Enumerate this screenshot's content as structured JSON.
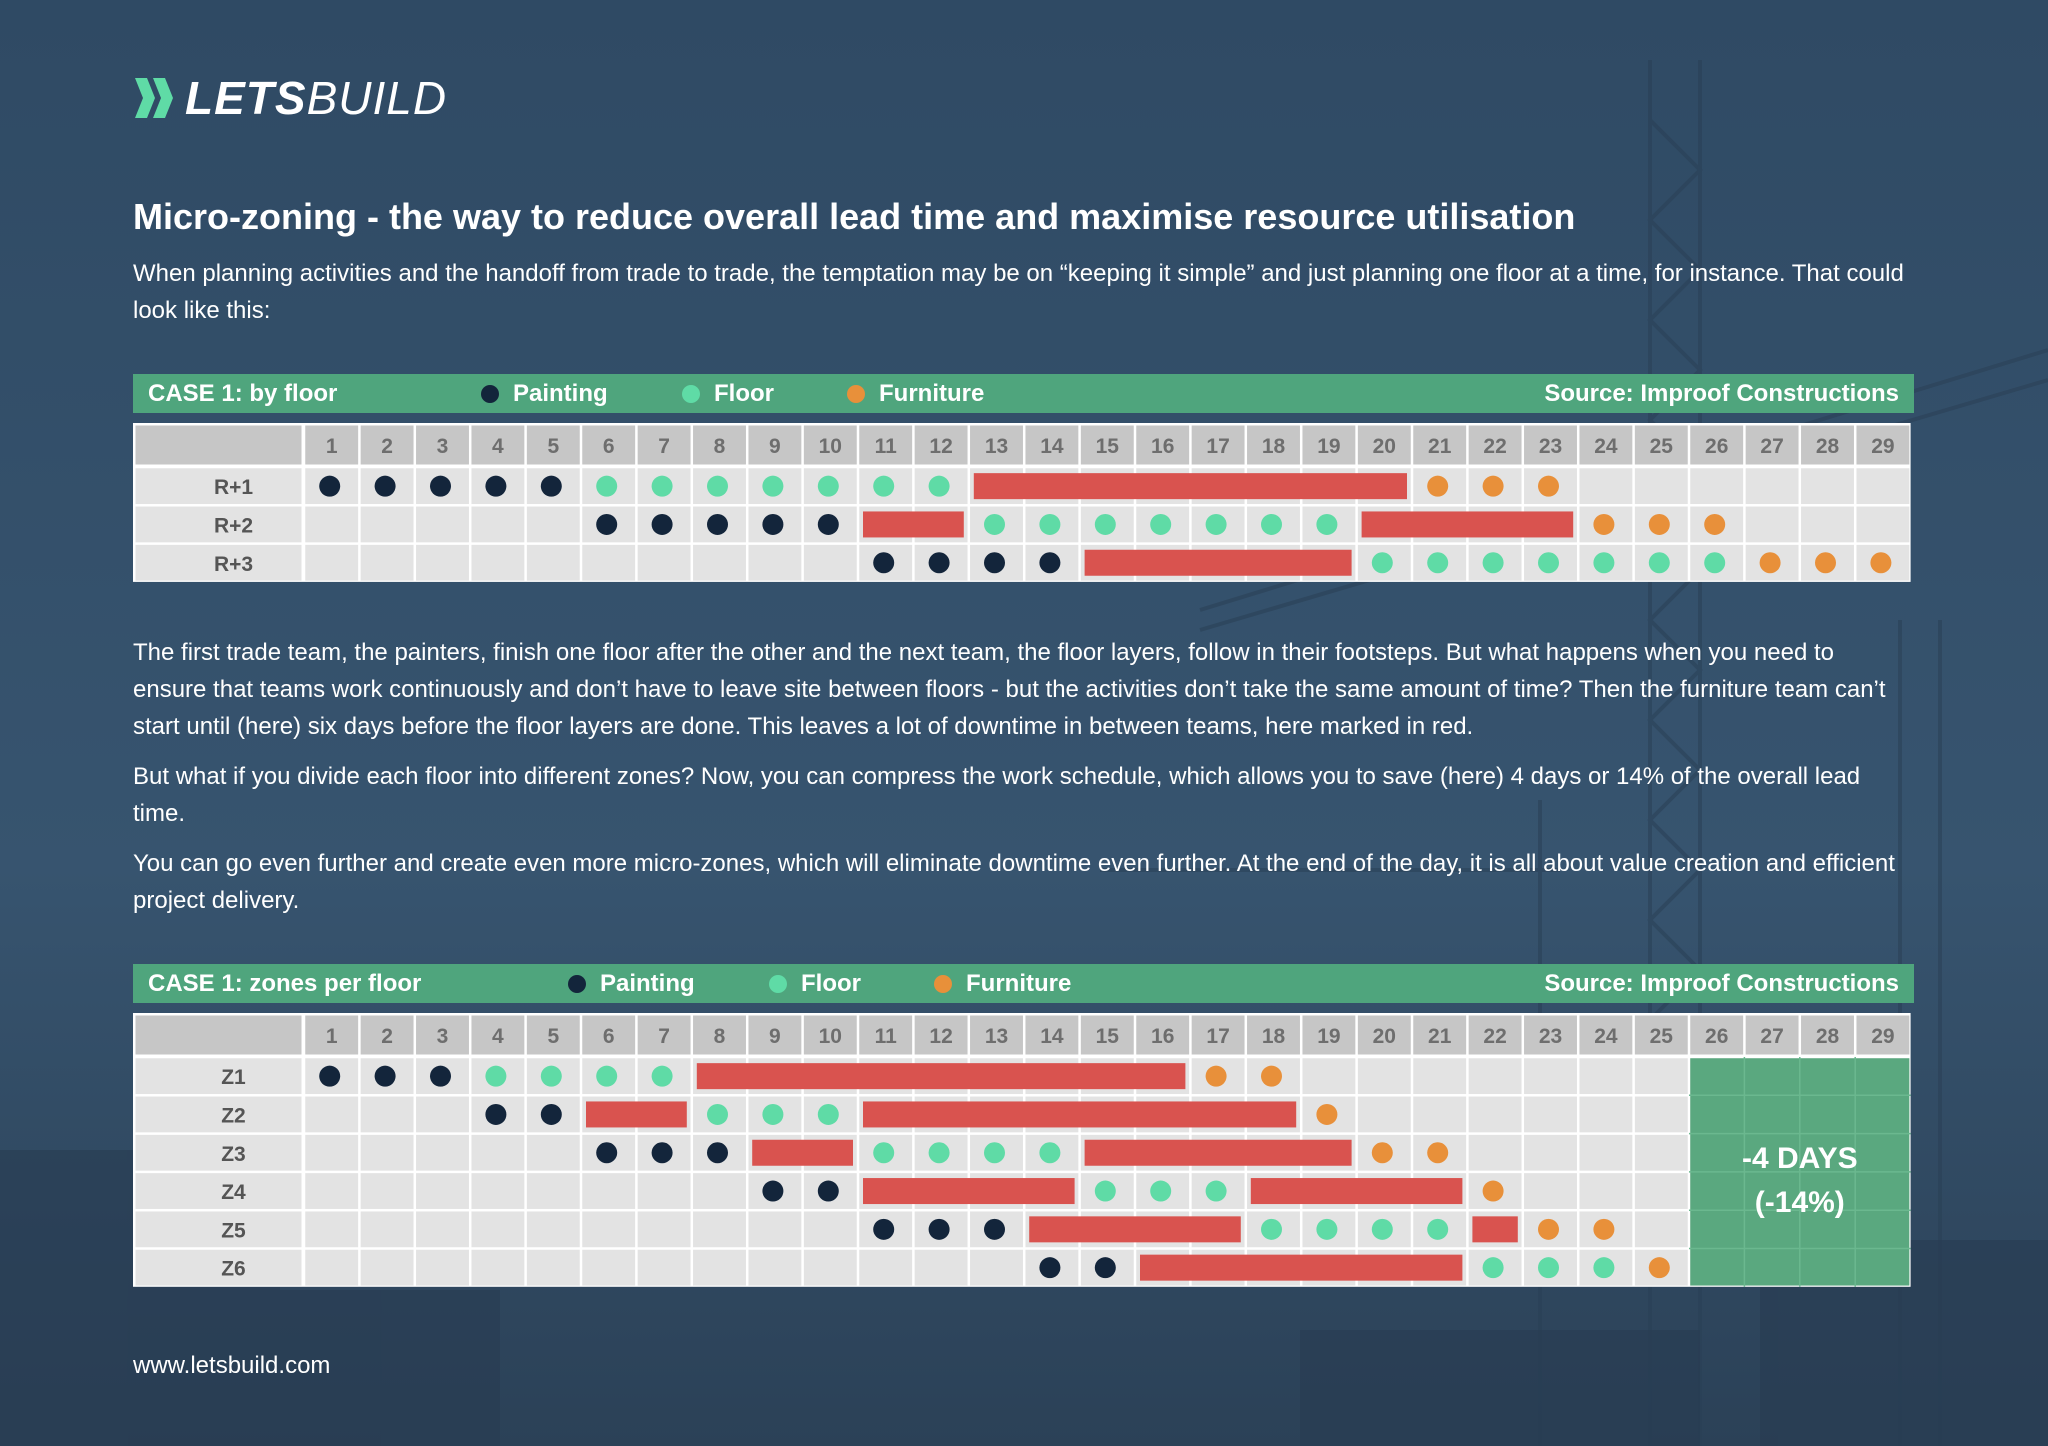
{
  "brand": {
    "logo_bold": "LETS",
    "logo_light": "BUILD",
    "website": "www.letsbuild.com"
  },
  "title": "Micro-zoning - the way to reduce overall lead time and maximise resource utilisation",
  "paragraphs": {
    "intro": "When planning activities and the handoff from trade to trade, the temptation may be on “keeping it simple” and just planning one floor at a time, for instance. That could look like this:",
    "p1": "The first trade team, the painters, finish one floor after the other and the next team, the floor layers, follow in their footsteps. But what happens when you need to ensure that teams work continuously and don’t have to leave site between floors - but the activities don’t take the same amount of time? Then the furniture team can’t start until (here) six days before the floor layers are done. This leaves a lot of downtime in between teams, here marked in red.",
    "p2": "But what if you divide each floor into different zones? Now, you can compress the work schedule, which allows you to save (here) 4 days or 14% of the overall lead time.",
    "p3": "You can go even further and create even more micro-zones, which will eliminate downtime even further. At the end of the day, it is all about value creation and efficient project delivery."
  },
  "colors": {
    "painting": "#13253b",
    "floor": "#5fdba6",
    "furniture": "#e8903a",
    "downtime": "#d9534f",
    "banner": "#4fa57d",
    "cell": "#e3e3e3",
    "header": "#c6c6c6",
    "savings": "#5aa87f"
  },
  "legend": {
    "painting": "Painting",
    "floor": "Floor",
    "furniture": "Furniture"
  },
  "chart_data": [
    {
      "type": "table",
      "title": "CASE 1: by floor",
      "source": "Source: Improof Constructions",
      "days": [
        1,
        2,
        3,
        4,
        5,
        6,
        7,
        8,
        9,
        10,
        11,
        12,
        13,
        14,
        15,
        16,
        17,
        18,
        19,
        20,
        21,
        22,
        23,
        24,
        25,
        26,
        27,
        28,
        29
      ],
      "rows": [
        {
          "label": "R+1",
          "painting": [
            1,
            5
          ],
          "floor": [
            6,
            12
          ],
          "furniture": [
            21,
            23
          ],
          "downtime": [
            [
              13,
              20
            ]
          ]
        },
        {
          "label": "R+2",
          "painting": [
            6,
            10
          ],
          "floor": [
            13,
            19
          ],
          "furniture": [
            24,
            26
          ],
          "downtime": [
            [
              11,
              12
            ],
            [
              20,
              23
            ]
          ]
        },
        {
          "label": "R+3",
          "painting": [
            11,
            14
          ],
          "floor": [
            20,
            26
          ],
          "furniture": [
            27,
            29
          ],
          "downtime": [
            [
              15,
              19
            ]
          ]
        }
      ]
    },
    {
      "type": "table",
      "title": "CASE 1: zones per floor",
      "source": "Source: Improof Constructions",
      "days": [
        1,
        2,
        3,
        4,
        5,
        6,
        7,
        8,
        9,
        10,
        11,
        12,
        13,
        14,
        15,
        16,
        17,
        18,
        19,
        20,
        21,
        22,
        23,
        24,
        25,
        26,
        27,
        28,
        29
      ],
      "savings": {
        "from_day": 26,
        "to_day": 29,
        "line1": "-4 DAYS",
        "line2": "(-14%)"
      },
      "rows": [
        {
          "label": "Z1",
          "painting": [
            1,
            3
          ],
          "floor": [
            4,
            7
          ],
          "furniture": [
            17,
            18
          ],
          "downtime": [
            [
              8,
              16
            ]
          ]
        },
        {
          "label": "Z2",
          "painting": [
            4,
            5
          ],
          "floor": [
            8,
            10
          ],
          "furniture": [
            19,
            19
          ],
          "downtime": [
            [
              6,
              7
            ],
            [
              11,
              18
            ]
          ]
        },
        {
          "label": "Z3",
          "painting": [
            6,
            8
          ],
          "floor": [
            11,
            14
          ],
          "furniture": [
            20,
            21
          ],
          "downtime": [
            [
              9,
              10
            ],
            [
              15,
              19
            ]
          ]
        },
        {
          "label": "Z4",
          "painting": [
            9,
            10
          ],
          "floor": [
            15,
            17
          ],
          "furniture": [
            22,
            22
          ],
          "downtime": [
            [
              11,
              14
            ],
            [
              18,
              21
            ]
          ]
        },
        {
          "label": "Z5",
          "painting": [
            11,
            13
          ],
          "floor": [
            18,
            21
          ],
          "furniture": [
            23,
            24
          ],
          "downtime": [
            [
              14,
              17
            ],
            [
              22,
              22
            ]
          ]
        },
        {
          "label": "Z6",
          "painting": [
            14,
            15
          ],
          "floor": [
            22,
            24
          ],
          "furniture": [
            25,
            25
          ],
          "downtime": [
            [
              16,
              21
            ]
          ]
        }
      ]
    }
  ]
}
